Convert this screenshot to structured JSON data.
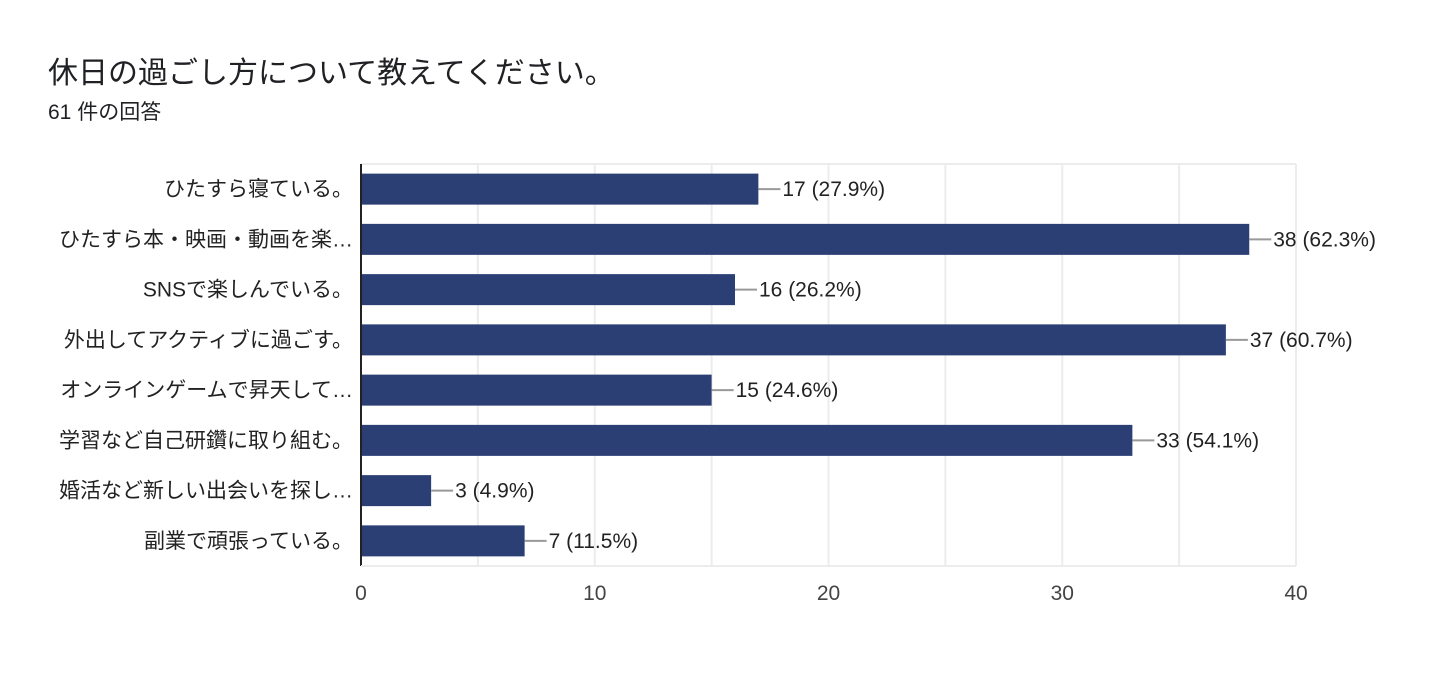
{
  "header": {
    "title": "休日の過ごし方について教えてください。",
    "response_count": "61 件の回答"
  },
  "colors": {
    "bar": "#2b3f75",
    "grid": "#ececec",
    "axis": "#222222",
    "leader": "#999999"
  },
  "chart_data": {
    "type": "bar",
    "orientation": "horizontal",
    "categories": [
      "ひたすら寝ている。",
      "ひたすら本・映画・動画を楽…",
      "SNSで楽しんでいる。",
      "外出してアクティブに過ごす。",
      "オンラインゲームで昇天して…",
      "学習など自己研鑽に取り組む。",
      "婚活など新しい出会いを探し…",
      "副業で頑張っている。"
    ],
    "values": [
      17,
      38,
      16,
      37,
      15,
      33,
      3,
      7
    ],
    "value_labels": [
      "17 (27.9%)",
      "38 (62.3%)",
      "16 (26.2%)",
      "37 (60.7%)",
      "15 (24.6%)",
      "33 (54.1%)",
      "3 (4.9%)",
      "7 (11.5%)"
    ],
    "xlim": [
      0,
      40
    ],
    "xticks": [
      0,
      10,
      20,
      30,
      40
    ],
    "grid": true
  }
}
